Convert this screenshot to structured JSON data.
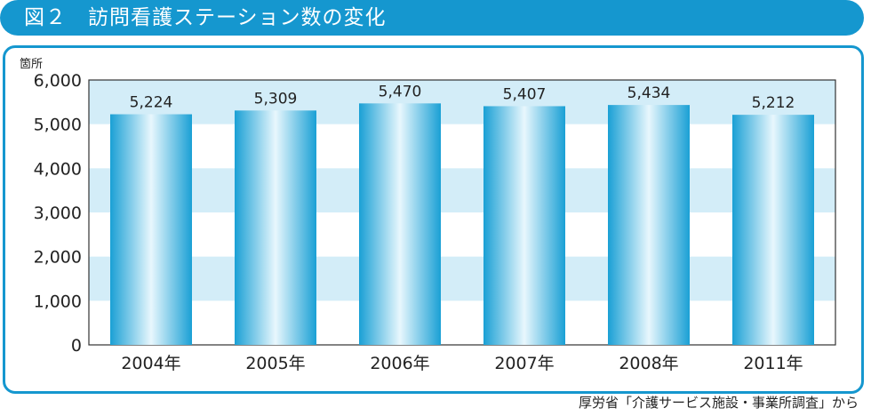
{
  "title": "図２　訪問看護ステーション数の変化",
  "source": "厚労省「介護サービス施設・事業所調査」から",
  "chart_data": {
    "type": "bar",
    "categories": [
      "2004年",
      "2005年",
      "2006年",
      "2007年",
      "2008年",
      "2011年"
    ],
    "values": [
      5224,
      5309,
      5470,
      5407,
      5434,
      5212
    ],
    "value_labels": [
      "5,224",
      "5,309",
      "5,470",
      "5,407",
      "5,434",
      "5,212"
    ],
    "ylabel": "箇所",
    "ylim": [
      0,
      6000
    ],
    "yticks": [
      0,
      1000,
      2000,
      3000,
      4000,
      5000,
      6000
    ],
    "ytick_labels": [
      "0",
      "1,000",
      "2,000",
      "3,000",
      "4,000",
      "5,000",
      "6,000"
    ],
    "grid": "alternating-bands",
    "colors": {
      "accent": "#1597cf",
      "band": "#d3edf8",
      "bar_dark": "#1ea3d6",
      "bar_light": "#e8f7fd"
    }
  }
}
